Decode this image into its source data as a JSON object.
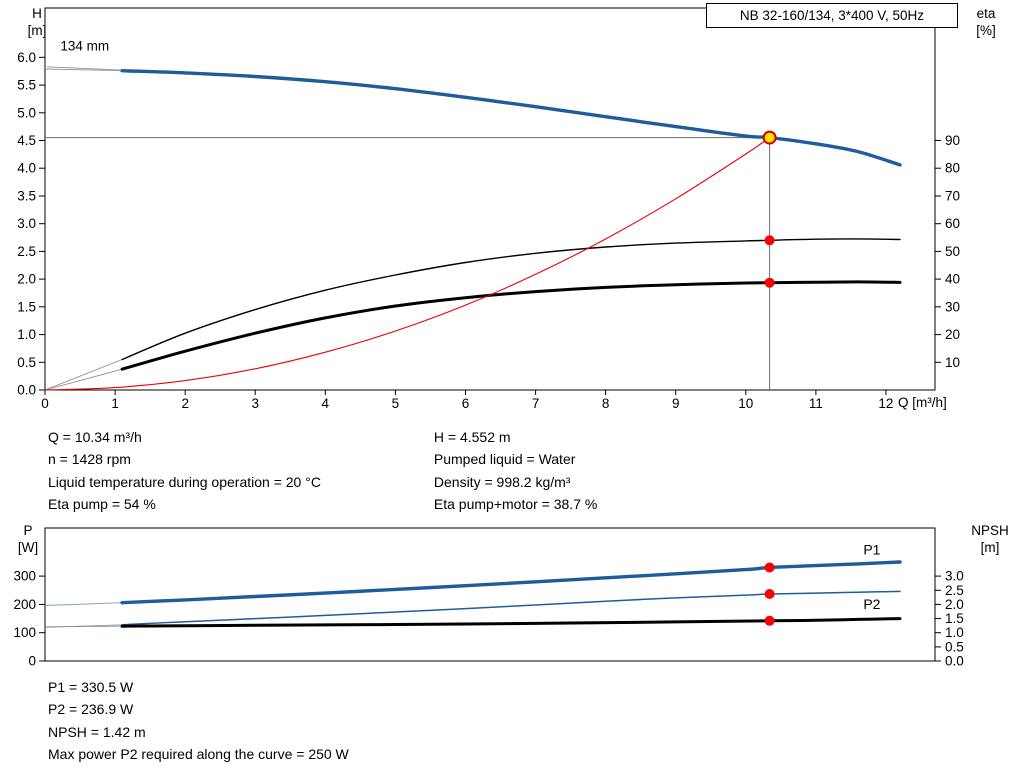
{
  "pump": {
    "title_box": "NB 32-160/134, 3*400 V, 50Hz"
  },
  "info": {
    "top_left": [
      "Q = 10.34 m³/h",
      "n = 1428 rpm",
      "Liquid temperature during operation = 20 °C",
      "Eta pump = 54 %"
    ],
    "top_right": [
      "H = 4.552 m",
      "Pumped liquid = Water",
      "Density = 998.2 kg/m³",
      "Eta pump+motor = 38.7 %"
    ],
    "bottom": [
      "P1 = 330.5 W",
      "P2 = 236.9 W",
      "NPSH = 1.42 m",
      "Max power P2 required along the curve = 250 W"
    ]
  },
  "colors": {
    "curve_blue": "#1e5c9e",
    "curve_black": "#000000",
    "system_red": "#e8000d",
    "marker_red": "#ff0000",
    "duty_fill": "#ffe000",
    "duty_stroke": "#d40000",
    "crosshair": "#6e6e6e",
    "ext_blue": "#8a9cb0",
    "ext_gray": "#8f8f8f"
  },
  "chart_data": [
    {
      "type": "line",
      "title": "NB 32-160/134, 3*400 V, 50Hz",
      "x_axis": {
        "label": "Q [m³/h]",
        "min": 0,
        "max": 12.7,
        "ticks": [
          [
            0,
            "0"
          ],
          [
            1,
            "1"
          ],
          [
            2,
            "2"
          ],
          [
            3,
            "3"
          ],
          [
            4,
            "4"
          ],
          [
            5,
            "5"
          ],
          [
            6,
            "6"
          ],
          [
            7,
            "7"
          ],
          [
            8,
            "8"
          ],
          [
            9,
            "9"
          ],
          [
            10,
            "10"
          ],
          [
            11,
            "11"
          ],
          [
            12,
            "12"
          ]
        ]
      },
      "y_axis": {
        "name": "H",
        "unit": "[m]",
        "min": 0,
        "max": 6.89,
        "ticks": [
          [
            0,
            "0.0"
          ],
          [
            0.5,
            "0.5"
          ],
          [
            1,
            "1.0"
          ],
          [
            1.5,
            "1.5"
          ],
          [
            2,
            "2.0"
          ],
          [
            2.5,
            "2.5"
          ],
          [
            3,
            "3.0"
          ],
          [
            3.5,
            "3.5"
          ],
          [
            4,
            "4.0"
          ],
          [
            4.5,
            "4.5"
          ],
          [
            5,
            "5.0"
          ],
          [
            5.5,
            "5.5"
          ],
          [
            6,
            "6.0"
          ]
        ]
      },
      "y2_axis": {
        "name": "eta",
        "unit": "[%]",
        "min": 0,
        "max": 137.8,
        "ticks": [
          [
            10,
            "10"
          ],
          [
            20,
            "20"
          ],
          [
            30,
            "30"
          ],
          [
            40,
            "40"
          ],
          [
            50,
            "50"
          ],
          [
            60,
            "60"
          ],
          [
            70,
            "70"
          ],
          [
            80,
            "80"
          ],
          [
            90,
            "90"
          ]
        ]
      },
      "duty_point": {
        "q_m3h": 10.34,
        "h_m": 4.552,
        "eta_pump_pct": 54,
        "eta_pump_motor_pct": 38.7
      },
      "series": [
        {
          "id": "qh-curve",
          "name": "H 134 mm",
          "axis": "y",
          "color": "#1e5c9e",
          "width": 3.4,
          "ext": [
            0,
            5.79
          ],
          "ext_color": "#8a9cb0",
          "points": [
            [
              1.1,
              5.76
            ],
            [
              2,
              5.72
            ],
            [
              3,
              5.655
            ],
            [
              4,
              5.56
            ],
            [
              5,
              5.435
            ],
            [
              6,
              5.28
            ],
            [
              7,
              5.11
            ],
            [
              8,
              4.93
            ],
            [
              9,
              4.75
            ],
            [
              10,
              4.58
            ],
            [
              10.34,
              4.552
            ],
            [
              11,
              4.44
            ],
            [
              11.6,
              4.3
            ],
            [
              12.2,
              4.06
            ]
          ]
        },
        {
          "id": "eta-pump-curve",
          "name": "Eta pump",
          "axis": "y2",
          "color": "#000000",
          "width": 1.4,
          "ext": [
            0,
            0
          ],
          "ext_color": "#8f8f8f",
          "points": [
            [
              1.1,
              11
            ],
            [
              2,
              20.5
            ],
            [
              3,
              29
            ],
            [
              4,
              36
            ],
            [
              5,
              41.5
            ],
            [
              6,
              46
            ],
            [
              7,
              49.3
            ],
            [
              8,
              51.6
            ],
            [
              9,
              53
            ],
            [
              10,
              53.8
            ],
            [
              10.34,
              54
            ],
            [
              11,
              54.4
            ],
            [
              11.6,
              54.5
            ],
            [
              12.2,
              54.3
            ]
          ]
        },
        {
          "id": "eta-pump-motor-curve",
          "name": "Eta pump+motor",
          "axis": "y2",
          "color": "#000000",
          "width": 3,
          "ext": [
            0,
            0
          ],
          "ext_color": "#8f8f8f",
          "points": [
            [
              1.1,
              7.5
            ],
            [
              2,
              14
            ],
            [
              3,
              20.5
            ],
            [
              4,
              26
            ],
            [
              5,
              30.3
            ],
            [
              6,
              33.3
            ],
            [
              7,
              35.5
            ],
            [
              8,
              37
            ],
            [
              9,
              38
            ],
            [
              10,
              38.6
            ],
            [
              10.34,
              38.7
            ],
            [
              11,
              38.9
            ],
            [
              11.6,
              39
            ],
            [
              12.2,
              38.8
            ]
          ]
        },
        {
          "id": "system-curve",
          "name": "System curve",
          "axis": "y",
          "color": "#e8000d",
          "width": 1.1,
          "points": [
            [
              0,
              0
            ],
            [
              1,
              0.043
            ],
            [
              2,
              0.17
            ],
            [
              3,
              0.383
            ],
            [
              4,
              0.681
            ],
            [
              5,
              1.064
            ],
            [
              6,
              1.532
            ],
            [
              7,
              2.086
            ],
            [
              8,
              2.724
            ],
            [
              9,
              3.448
            ],
            [
              10,
              4.257
            ],
            [
              10.34,
              4.552
            ]
          ]
        }
      ],
      "crosshair": {
        "q": 10.34,
        "v": 4.552
      },
      "markers": [
        {
          "type": "dot",
          "q": 10.34,
          "v": 54,
          "axis": "y2"
        },
        {
          "type": "dot",
          "q": 10.34,
          "v": 38.7,
          "axis": "y2"
        },
        {
          "type": "duty",
          "q": 10.34,
          "v": 4.552,
          "axis": "y"
        }
      ],
      "annotations": [
        {
          "text": "134 mm",
          "q": 0.22,
          "v": 6.12,
          "leader": [
            [
              0.03,
              5.83
            ],
            [
              1.08,
              5.77
            ]
          ]
        }
      ]
    },
    {
      "type": "line",
      "title": "",
      "x_axis": {
        "label": "",
        "min": 0,
        "max": 12.7,
        "ticks": []
      },
      "y_axis": {
        "name": "P",
        "unit": "[W]",
        "min": 0,
        "max": 470,
        "ticks": [
          [
            0,
            "0"
          ],
          [
            100,
            "100"
          ],
          [
            200,
            "200"
          ],
          [
            300,
            "300"
          ]
        ]
      },
      "y2_axis": {
        "name": "NPSH",
        "unit": "[m]",
        "min": 0,
        "max": 4.7,
        "ticks": [
          [
            0,
            "0.0"
          ],
          [
            0.5,
            "0.5"
          ],
          [
            1,
            "1.0"
          ],
          [
            1.5,
            "1.5"
          ],
          [
            2,
            "2.0"
          ],
          [
            2.5,
            "2.5"
          ],
          [
            3,
            "3.0"
          ]
        ]
      },
      "duty_point": {
        "q_m3h": 10.34,
        "p1_w": 330.5,
        "p2_w": 236.9,
        "npsh_m": 1.42,
        "max_p2_along_curve_w": 250
      },
      "series": [
        {
          "id": "p1-curve",
          "name": "P1",
          "axis": "y",
          "color": "#1e5c9e",
          "width": 3.4,
          "ext": [
            0,
            196
          ],
          "ext_color": "#8a9cb0",
          "label_at": [
            11.8,
            "above"
          ],
          "points": [
            [
              1.1,
              206
            ],
            [
              2,
              216
            ],
            [
              3,
              228
            ],
            [
              4,
              240
            ],
            [
              5,
              253
            ],
            [
              6,
              266
            ],
            [
              7,
              280
            ],
            [
              8,
              294
            ],
            [
              9,
              308
            ],
            [
              10,
              323
            ],
            [
              10.34,
              330.5
            ],
            [
              11,
              337
            ],
            [
              11.6,
              343
            ],
            [
              12.2,
              350
            ]
          ]
        },
        {
          "id": "p2-curve",
          "name": "P2",
          "axis": "y",
          "color": "#1e5c9e",
          "width": 1.5,
          "ext": [
            0,
            119
          ],
          "ext_color": "#8a9cb0",
          "label_at": [
            11.8,
            "below"
          ],
          "points": [
            [
              1.1,
              128
            ],
            [
              2,
              139
            ],
            [
              3,
              150
            ],
            [
              4,
              161
            ],
            [
              5,
              173
            ],
            [
              6,
              185
            ],
            [
              7,
              198
            ],
            [
              8,
              211
            ],
            [
              9,
              223
            ],
            [
              10,
              233
            ],
            [
              10.34,
              236.9
            ],
            [
              11,
              240
            ],
            [
              11.6,
              243
            ],
            [
              12.2,
              246
            ]
          ]
        },
        {
          "id": "npsh-curve",
          "name": "NPSH",
          "axis": "y2",
          "color": "#000000",
          "width": 3,
          "ext": [
            0,
            1.21
          ],
          "ext_color": "#8f8f8f",
          "points": [
            [
              1.1,
              1.23
            ],
            [
              3,
              1.26
            ],
            [
              5,
              1.29
            ],
            [
              7,
              1.33
            ],
            [
              9,
              1.38
            ],
            [
              10.34,
              1.42
            ],
            [
              11,
              1.44
            ],
            [
              11.6,
              1.47
            ],
            [
              12.2,
              1.5
            ]
          ]
        }
      ],
      "markers": [
        {
          "type": "dot",
          "q": 10.34,
          "v": 330.5,
          "axis": "y"
        },
        {
          "type": "dot",
          "q": 10.34,
          "v": 236.9,
          "axis": "y"
        },
        {
          "type": "dot",
          "q": 10.34,
          "v": 1.42,
          "axis": "y2"
        }
      ],
      "annotations": []
    }
  ]
}
